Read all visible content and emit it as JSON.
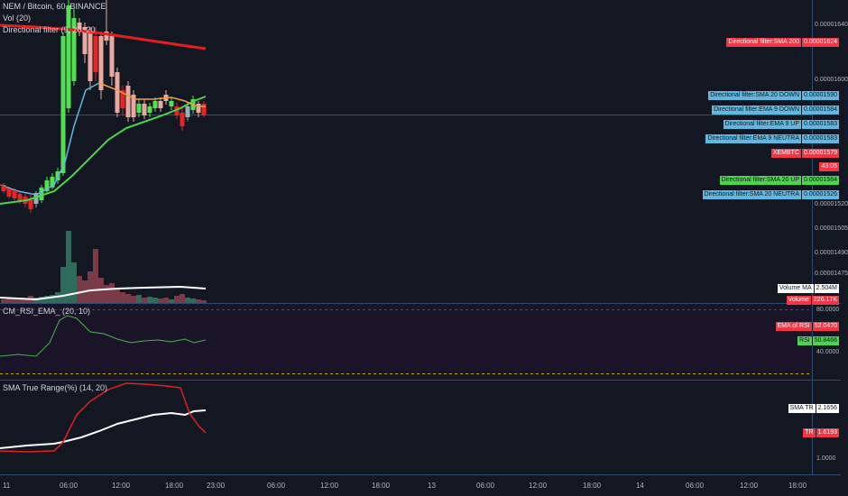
{
  "header": {
    "symbol": "NEM / Bitcoin, 60, BINANCE",
    "indicators": [
      "Vol (20)",
      "Directional filter (9, 20, 20"
    ]
  },
  "price_axis": {
    "ticks": [
      "0.00001640",
      "0.00001600",
      "0.00001520",
      "0.00001505",
      "0.00001490",
      "0.00001475"
    ],
    "tags": [
      {
        "name": "Directional filter:SMA 200",
        "value": "0.00001624",
        "color": "#f23645"
      },
      {
        "name": "Directional filter:SMA 20 DOWN",
        "value": "0.00001590",
        "color": "#5fb8e0"
      },
      {
        "name": "Directional filter:EMA 9 DOWN",
        "value": "0.00001584",
        "color": "#5fb8e0"
      },
      {
        "name": "Directional filter:EMA 9 UP",
        "value": "0.00001583",
        "color": "#5fb8e0"
      },
      {
        "name": "Directional filter:EMA 9 NEUTRA",
        "value": "0.00001583",
        "color": "#5fb8e0"
      },
      {
        "name": "XEMBTC",
        "value": "0.00001579",
        "color": "#f23645"
      },
      {
        "name": "43:05",
        "value": null,
        "color": "#f23645"
      },
      {
        "name": "Directional filter:SMA 20 UP",
        "value": "0.00001564",
        "color": "#4cd44c"
      },
      {
        "name": "Directional filter:SMA 20 NEUTRA",
        "value": "0.00001526",
        "color": "#5fb8e0"
      },
      {
        "name": "Volume MA",
        "value": "2.504M",
        "color": "#ffffff"
      },
      {
        "name": "Volume",
        "value": "226.17K",
        "color": "#f23645"
      }
    ]
  },
  "rsi_pane": {
    "title": "CM_RSI_EMA_ (20, 10)",
    "ticks": [
      "80.0000",
      "40.0000"
    ],
    "tags": [
      {
        "name": "EMA of RSI",
        "value": "52.0470",
        "color": "#f23645"
      },
      {
        "name": "RSI",
        "value": "50.8466",
        "color": "#4cd44c"
      }
    ]
  },
  "tr_pane": {
    "title": "SMA True Range(%) (14, 20)",
    "ticks": [
      "1.0000"
    ],
    "tags": [
      {
        "name": "SMA TR",
        "value": "2.1656",
        "color": "#ffffff"
      },
      {
        "name": "TR",
        "value": "1.6193",
        "color": "#f23645"
      }
    ]
  },
  "time_axis": [
    "11",
    "06:00",
    "12:00",
    "18:00",
    "23:00",
    "06:00",
    "12:00",
    "18:00",
    "13",
    "06:00",
    "12:00",
    "18:00",
    "14",
    "06:00",
    "12:00",
    "18:00"
  ]
}
